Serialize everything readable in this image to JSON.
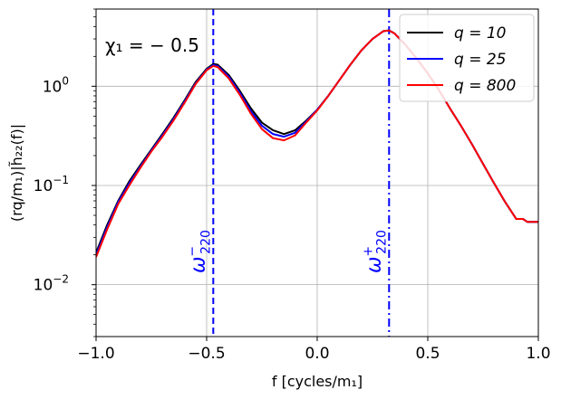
{
  "chart_data": {
    "type": "line",
    "title": "",
    "xlabel": "f [cycles/m₁]",
    "ylabel": "(rq/m₁)|h̃₂₂(f)|",
    "xlim": [
      -1.0,
      1.0
    ],
    "ylim": [
      0.003,
      6.0
    ],
    "yscale": "log",
    "grid": true,
    "xticks": [
      -1.0,
      -0.5,
      0.0,
      0.5,
      1.0
    ],
    "xtick_labels": [
      "−1.0",
      "−0.5",
      "0.0",
      "0.5",
      "1.0"
    ],
    "yticks": [
      0.01,
      0.1,
      1.0
    ],
    "ytick_base": "10",
    "ytick_exponents": [
      "−2",
      "−1",
      "0"
    ],
    "annotation": "χ₁ = − 0.5",
    "vlines": [
      {
        "name": "omega-minus",
        "x": -0.47,
        "style": "dashed",
        "color": "#0000ff",
        "label_main": "ω",
        "label_sub": "220",
        "label_sup": "−"
      },
      {
        "name": "omega-plus",
        "x": 0.325,
        "style": "dashdot",
        "color": "#0000ff",
        "label_main": "ω",
        "label_sub": "220",
        "label_sup": "+"
      }
    ],
    "legend_position": "top-right",
    "series": [
      {
        "name": "q = 10",
        "legend_label": "q = 10",
        "color": "#000000",
        "x": [
          -1.0,
          -0.95,
          -0.9,
          -0.85,
          -0.8,
          -0.75,
          -0.7,
          -0.65,
          -0.6,
          -0.55,
          -0.5,
          -0.47,
          -0.45,
          -0.4,
          -0.35,
          -0.3,
          -0.25,
          -0.2,
          -0.15,
          -0.1,
          -0.05,
          0.0,
          0.05,
          0.1,
          0.15,
          0.2,
          0.25,
          0.3,
          0.325,
          0.35,
          0.4,
          0.45,
          0.5,
          0.55,
          0.6,
          0.65,
          0.7,
          0.75,
          0.8,
          0.85,
          0.9,
          0.93,
          0.95,
          1.0
        ],
        "values": [
          0.021,
          0.04,
          0.07,
          0.11,
          0.16,
          0.23,
          0.33,
          0.48,
          0.72,
          1.1,
          1.5,
          1.68,
          1.65,
          1.3,
          0.9,
          0.6,
          0.43,
          0.36,
          0.33,
          0.36,
          0.45,
          0.58,
          0.8,
          1.15,
          1.65,
          2.3,
          3.0,
          3.6,
          3.65,
          3.4,
          2.6,
          1.9,
          1.35,
          0.92,
          0.6,
          0.4,
          0.26,
          0.165,
          0.105,
          0.068,
          0.046,
          0.046,
          0.043,
          0.043
        ]
      },
      {
        "name": "q = 25",
        "legend_label": "q = 25",
        "color": "#0000ff",
        "x": [
          -1.0,
          -0.95,
          -0.9,
          -0.85,
          -0.8,
          -0.75,
          -0.7,
          -0.65,
          -0.6,
          -0.55,
          -0.5,
          -0.47,
          -0.45,
          -0.4,
          -0.35,
          -0.3,
          -0.25,
          -0.2,
          -0.15,
          -0.1,
          -0.05,
          0.0,
          0.05,
          0.1,
          0.15,
          0.2,
          0.25,
          0.3,
          0.325,
          0.35,
          0.4,
          0.45,
          0.5,
          0.55,
          0.6,
          0.65,
          0.7,
          0.75,
          0.8,
          0.85,
          0.9,
          0.93,
          0.95,
          1.0
        ],
        "values": [
          0.02,
          0.038,
          0.068,
          0.105,
          0.155,
          0.225,
          0.32,
          0.465,
          0.7,
          1.07,
          1.47,
          1.64,
          1.6,
          1.25,
          0.86,
          0.56,
          0.4,
          0.33,
          0.31,
          0.34,
          0.44,
          0.58,
          0.8,
          1.15,
          1.65,
          2.3,
          3.0,
          3.6,
          3.65,
          3.4,
          2.6,
          1.9,
          1.35,
          0.92,
          0.6,
          0.4,
          0.26,
          0.165,
          0.105,
          0.068,
          0.046,
          0.046,
          0.043,
          0.043
        ]
      },
      {
        "name": "q = 800",
        "legend_label": "q = 800",
        "color": "#ff0000",
        "x": [
          -1.0,
          -0.95,
          -0.9,
          -0.85,
          -0.8,
          -0.75,
          -0.7,
          -0.65,
          -0.6,
          -0.55,
          -0.5,
          -0.47,
          -0.45,
          -0.4,
          -0.35,
          -0.3,
          -0.25,
          -0.2,
          -0.15,
          -0.1,
          -0.05,
          0.0,
          0.05,
          0.1,
          0.15,
          0.2,
          0.25,
          0.3,
          0.325,
          0.35,
          0.4,
          0.45,
          0.5,
          0.55,
          0.6,
          0.65,
          0.7,
          0.75,
          0.8,
          0.85,
          0.9,
          0.93,
          0.95,
          1.0
        ],
        "values": [
          0.019,
          0.036,
          0.065,
          0.1,
          0.15,
          0.22,
          0.31,
          0.45,
          0.68,
          1.05,
          1.45,
          1.6,
          1.56,
          1.2,
          0.82,
          0.53,
          0.37,
          0.3,
          0.285,
          0.32,
          0.43,
          0.57,
          0.8,
          1.15,
          1.65,
          2.3,
          3.0,
          3.6,
          3.65,
          3.4,
          2.6,
          1.9,
          1.35,
          0.92,
          0.6,
          0.4,
          0.26,
          0.165,
          0.105,
          0.068,
          0.046,
          0.046,
          0.043,
          0.043
        ]
      }
    ]
  }
}
